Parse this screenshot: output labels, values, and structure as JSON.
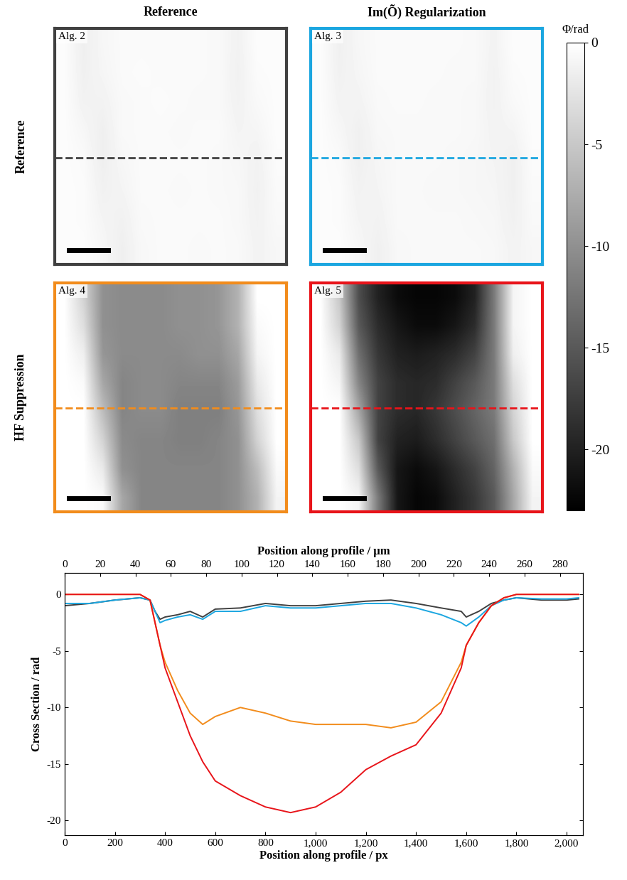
{
  "column_titles": [
    "Reference",
    "Im(Õ) Regularization"
  ],
  "row_titles": [
    "Reference",
    "HF Suppression"
  ],
  "colorbar": {
    "label": "Φ/rad",
    "lim": [
      -23,
      0
    ],
    "ticks": [
      0,
      -5,
      -10,
      -15,
      -20
    ]
  },
  "chart_data": [
    {
      "type": "heatmap",
      "label": "Alg. 2",
      "color": "#404040",
      "xlim": [
        0,
        2048
      ],
      "ylim": [
        2048,
        0
      ],
      "tick_labels": false,
      "profile_row": 1120,
      "cells": [
        [
          -0.3,
          -1.5,
          -0.8,
          -0.5,
          -0.5,
          -0.5,
          -0.5,
          -0.5,
          -0.6,
          -1.2,
          -0.3,
          -0.3
        ],
        [
          -0.3,
          -1.4,
          -0.9,
          -0.5,
          -0.4,
          -0.5,
          -0.5,
          -0.5,
          -0.6,
          -1.3,
          -0.4,
          -0.3
        ],
        [
          -0.3,
          -1.2,
          -1.2,
          -0.6,
          -0.5,
          -0.4,
          -0.5,
          -0.6,
          -0.6,
          -1.2,
          -0.6,
          -0.3
        ],
        [
          -0.3,
          -0.8,
          -1.5,
          -0.6,
          -0.5,
          -0.5,
          -0.6,
          -0.5,
          -0.5,
          -1.0,
          -0.9,
          -0.3
        ],
        [
          -0.3,
          -0.5,
          -1.5,
          -0.8,
          -0.5,
          -0.5,
          -0.5,
          -0.5,
          -0.6,
          -0.8,
          -1.2,
          -0.4
        ],
        [
          -0.3,
          -0.4,
          -1.3,
          -1.0,
          -0.5,
          -0.5,
          -0.6,
          -0.5,
          -0.6,
          -0.7,
          -1.3,
          -0.5
        ],
        [
          -0.3,
          -0.4,
          -1.0,
          -1.3,
          -0.6,
          -0.5,
          -0.5,
          -0.5,
          -0.5,
          -0.7,
          -1.2,
          -0.6
        ],
        [
          -0.3,
          -0.3,
          -0.8,
          -1.5,
          -0.7,
          -0.5,
          -0.5,
          -0.6,
          -0.5,
          -0.6,
          -1.1,
          -0.8
        ]
      ]
    },
    {
      "type": "heatmap",
      "label": "Alg. 3",
      "color": "#1ba6e0",
      "xlim": [
        0,
        2048
      ],
      "ylim": [
        2048,
        0
      ],
      "tick_labels": false,
      "profile_row": 1120,
      "cells": [
        [
          -0.3,
          -1.4,
          -0.8,
          -0.5,
          -0.5,
          -0.5,
          -0.5,
          -0.5,
          -0.6,
          -1.1,
          -0.3,
          -0.3
        ],
        [
          -0.3,
          -1.3,
          -0.9,
          -0.5,
          -0.5,
          -0.5,
          -0.5,
          -0.6,
          -0.6,
          -1.2,
          -0.4,
          -0.3
        ],
        [
          -0.3,
          -1.1,
          -1.1,
          -0.6,
          -0.5,
          -0.5,
          -0.6,
          -0.6,
          -0.7,
          -1.2,
          -0.6,
          -0.3
        ],
        [
          -0.3,
          -0.8,
          -1.4,
          -0.7,
          -0.6,
          -0.6,
          -0.6,
          -0.6,
          -0.7,
          -1.1,
          -1.0,
          -0.3
        ],
        [
          -0.3,
          -0.5,
          -1.4,
          -0.9,
          -0.6,
          -0.6,
          -0.6,
          -0.7,
          -0.8,
          -1.0,
          -1.4,
          -0.4
        ],
        [
          -0.3,
          -0.4,
          -1.2,
          -1.0,
          -0.6,
          -0.6,
          -0.7,
          -0.7,
          -0.8,
          -0.9,
          -1.4,
          -0.5
        ],
        [
          -0.3,
          -0.4,
          -1.0,
          -1.2,
          -0.6,
          -0.6,
          -0.6,
          -0.6,
          -0.7,
          -0.8,
          -1.3,
          -0.6
        ],
        [
          -0.3,
          -0.3,
          -0.8,
          -1.4,
          -0.7,
          -0.6,
          -0.6,
          -0.6,
          -0.6,
          -0.7,
          -1.1,
          -0.8
        ]
      ]
    },
    {
      "type": "heatmap",
      "label": "Alg. 4",
      "color": "#f28c1c",
      "xlim": [
        0,
        2048
      ],
      "ylim": [
        2048,
        0
      ],
      "tick_labels": false,
      "profile_row": 1120,
      "cells": [
        [
          0,
          -4,
          -10,
          -10.5,
          -10.5,
          -10.5,
          -10,
          -10,
          -9.5,
          -7,
          0,
          0
        ],
        [
          0,
          -3,
          -10,
          -10.5,
          -10.5,
          -10.5,
          -10,
          -10,
          -9.5,
          -7,
          -0.5,
          0
        ],
        [
          0,
          -1.5,
          -9.5,
          -10.5,
          -10.5,
          -10.5,
          -10.5,
          -10,
          -10,
          -8,
          -1,
          0
        ],
        [
          0,
          -0.5,
          -8,
          -11,
          -10.5,
          -10.5,
          -11,
          -11,
          -11,
          -9,
          -2,
          0
        ],
        [
          0,
          0,
          -6,
          -11,
          -10.5,
          -10.5,
          -11.5,
          -11.5,
          -11.5,
          -9.5,
          -3,
          0
        ],
        [
          0,
          0,
          -4,
          -10.5,
          -11,
          -11,
          -11.5,
          -11.5,
          -11,
          -10,
          -4,
          0
        ],
        [
          0,
          0,
          -2,
          -10,
          -11,
          -11,
          -11,
          -11,
          -11,
          -10,
          -6,
          -0.5
        ],
        [
          0,
          0,
          -0.5,
          -8,
          -11,
          -11,
          -11,
          -11,
          -11,
          -10,
          -7,
          -1
        ]
      ]
    },
    {
      "type": "heatmap",
      "label": "Alg. 5",
      "color": "#e8141a",
      "xlim": [
        0,
        2048
      ],
      "ylim": [
        2048,
        0
      ],
      "tick_labels": false,
      "profile_row": 1120,
      "cells": [
        [
          0,
          -5,
          -16,
          -20,
          -22,
          -22.5,
          -22.5,
          -22,
          -20,
          -12,
          -1,
          0
        ],
        [
          0,
          -4,
          -15,
          -19,
          -21,
          -22,
          -22,
          -21,
          -19,
          -12,
          -1,
          0
        ],
        [
          0,
          -2,
          -13,
          -18,
          -20,
          -20.5,
          -20,
          -19,
          -17,
          -12,
          -1.5,
          0
        ],
        [
          0,
          -1,
          -11,
          -17,
          -19,
          -19.5,
          -19,
          -17,
          -15,
          -12,
          -3,
          0
        ],
        [
          0,
          0,
          -8,
          -17,
          -19,
          -19.5,
          -18,
          -16,
          -14,
          -12,
          -4,
          0
        ],
        [
          0,
          0,
          -5,
          -17,
          -20,
          -20.5,
          -19,
          -17,
          -15,
          -13,
          -5,
          0
        ],
        [
          0,
          0,
          -3,
          -15,
          -21,
          -22,
          -21,
          -19,
          -17,
          -14,
          -7,
          -0.5
        ],
        [
          0,
          0,
          -1,
          -12,
          -21,
          -22.5,
          -22,
          -20,
          -18,
          -15,
          -8,
          -1
        ]
      ]
    },
    {
      "type": "line",
      "xlabel": "Position along profile / px",
      "x2label": "Position along profile / µm",
      "ylabel": "Cross Section / rad",
      "xlim": [
        0,
        2065
      ],
      "xticks": [
        0,
        200,
        400,
        600,
        800,
        {
          "value": 1000,
          "label": "1,000"
        },
        {
          "value": 1200,
          "label": "1,200"
        },
        {
          "value": 1400,
          "label": "1,400"
        },
        {
          "value": 1600,
          "label": "1,600"
        },
        {
          "value": 1800,
          "label": "1,800"
        },
        {
          "value": 2000,
          "label": "2,000"
        }
      ],
      "x2lim": [
        0,
        293
      ],
      "x2ticks": [
        0,
        20,
        40,
        60,
        80,
        100,
        120,
        140,
        160,
        180,
        200,
        220,
        240,
        260,
        280
      ],
      "ylim": [
        -21.3,
        1.9
      ],
      "yticks": [
        -20,
        -15,
        -10,
        -5,
        0
      ],
      "x": [
        0,
        100,
        200,
        300,
        340,
        360,
        380,
        400,
        450,
        500,
        550,
        600,
        700,
        800,
        900,
        1000,
        1100,
        1200,
        1300,
        1400,
        1500,
        1580,
        1600,
        1650,
        1700,
        1750,
        1800,
        1900,
        2000,
        2048
      ],
      "series": [
        {
          "color": "#404040",
          "values": [
            -1,
            -0.8,
            -0.5,
            -0.3,
            -0.5,
            -1.5,
            -2.2,
            -2,
            -1.8,
            -1.5,
            -2,
            -1.3,
            -1.2,
            -0.8,
            -1,
            -1,
            -0.8,
            -0.6,
            -0.5,
            -0.8,
            -1.2,
            -1.5,
            -2,
            -1.5,
            -0.8,
            -0.5,
            -0.3,
            -0.5,
            -0.5,
            -0.4
          ]
        },
        {
          "color": "#1ba6e0",
          "values": [
            -0.8,
            -0.8,
            -0.5,
            -0.3,
            -0.5,
            -1.5,
            -2.5,
            -2.3,
            -2,
            -1.8,
            -2.2,
            -1.5,
            -1.5,
            -1,
            -1.2,
            -1.2,
            -1,
            -0.8,
            -0.8,
            -1.2,
            -1.8,
            -2.5,
            -2.8,
            -2,
            -1,
            -0.5,
            -0.3,
            -0.4,
            -0.4,
            -0.3
          ]
        },
        {
          "color": "#f28c1c",
          "values": [
            0,
            0,
            0,
            0,
            -0.5,
            -2.5,
            -4.5,
            -6,
            -8.5,
            -10.5,
            -11.5,
            -10.8,
            -10,
            -10.5,
            -11.2,
            -11.5,
            -11.5,
            -11.5,
            -11.8,
            -11.3,
            -9.5,
            -6,
            -4.5,
            -2.5,
            -1,
            -0.3,
            0,
            0,
            0,
            0
          ]
        },
        {
          "color": "#e8141a",
          "values": [
            0,
            0,
            0,
            0,
            -0.5,
            -2.5,
            -4.5,
            -6.5,
            -9.5,
            -12.5,
            -14.8,
            -16.5,
            -17.8,
            -18.8,
            -19.3,
            -18.8,
            -17.5,
            -15.5,
            -14.3,
            -13.3,
            -10.5,
            -6.5,
            -4.5,
            -2.5,
            -1,
            -0.3,
            0,
            0,
            0,
            0
          ]
        }
      ]
    }
  ]
}
